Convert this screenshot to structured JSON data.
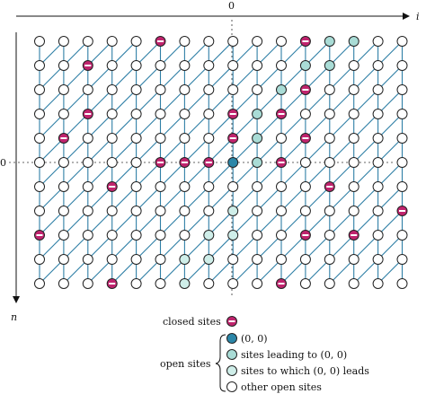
{
  "axes": {
    "x_label": "i",
    "y_label": "n",
    "x_zero": "0",
    "y_zero": "0"
  },
  "grid": {
    "cols": 16,
    "rows": 11,
    "origin_col": 8,
    "origin_row": 5
  },
  "colors": {
    "edge": "#2f7fa6",
    "closed": "#c0246e",
    "closed_bar": "#ffffff",
    "origin": "#2b86a8",
    "leading": "#a9dcd6",
    "leads_to": "#cfeee9",
    "open": "#ffffff"
  },
  "sites": {
    "closed": [
      [
        5,
        0
      ],
      [
        11,
        0
      ],
      [
        2,
        1
      ],
      [
        11,
        2
      ],
      [
        8,
        3
      ],
      [
        10,
        3
      ],
      [
        2,
        3
      ],
      [
        1,
        4
      ],
      [
        8,
        4
      ],
      [
        11,
        4
      ],
      [
        5,
        5
      ],
      [
        6,
        5
      ],
      [
        7,
        5
      ],
      [
        10,
        5
      ],
      [
        3,
        6
      ],
      [
        12,
        6
      ],
      [
        15,
        7
      ],
      [
        0,
        8
      ],
      [
        11,
        8
      ],
      [
        13,
        8
      ],
      [
        3,
        10
      ],
      [
        10,
        10
      ],
      [
        5,
        11
      ],
      [
        9,
        11
      ],
      [
        12,
        11
      ],
      [
        0,
        11
      ]
    ],
    "leading": [
      [
        12,
        0
      ],
      [
        13,
        0
      ],
      [
        11,
        1
      ],
      [
        12,
        1
      ],
      [
        10,
        2
      ],
      [
        11,
        2
      ],
      [
        9,
        3
      ],
      [
        10,
        3
      ],
      [
        9,
        4
      ],
      [
        9,
        5
      ],
      [
        8,
        5
      ]
    ],
    "leads_to": [
      [
        8,
        7
      ],
      [
        8,
        8
      ],
      [
        7,
        8
      ],
      [
        7,
        9
      ],
      [
        6,
        9
      ],
      [
        6,
        10
      ],
      [
        6,
        11
      ],
      [
        5,
        11
      ],
      [
        5,
        12
      ]
    ]
  },
  "legend": {
    "closed_label": "closed sites",
    "open_label": "open sites",
    "items": [
      {
        "kind": "origin",
        "label": "(0, 0)"
      },
      {
        "kind": "leading",
        "label": "sites leading to (0, 0)"
      },
      {
        "kind": "leads_to",
        "label": "sites to which (0, 0) leads"
      },
      {
        "kind": "open",
        "label": "other open sites"
      }
    ]
  }
}
